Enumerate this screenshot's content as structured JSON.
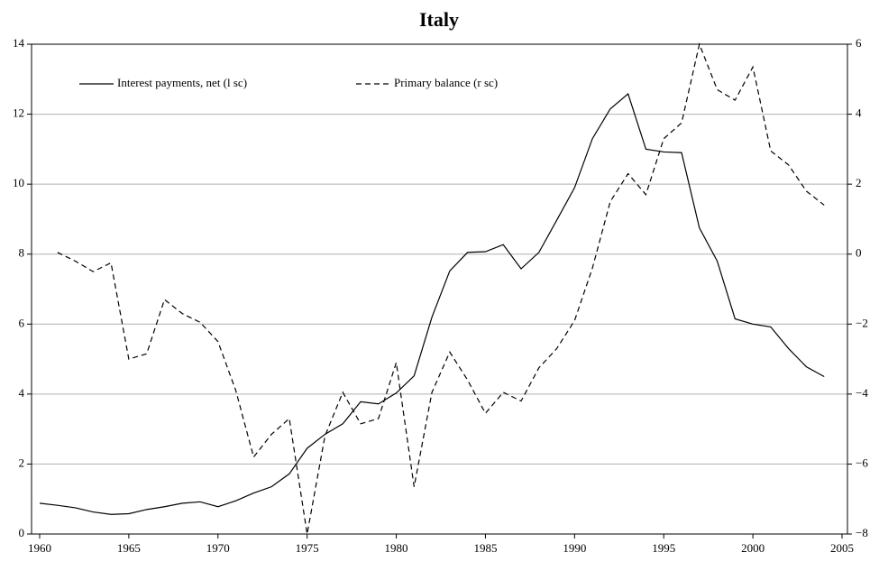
{
  "chart_data": {
    "type": "line",
    "title": "Italy",
    "x": [
      1960,
      1961,
      1962,
      1963,
      1964,
      1965,
      1966,
      1967,
      1968,
      1969,
      1970,
      1971,
      1972,
      1973,
      1974,
      1975,
      1976,
      1977,
      1978,
      1979,
      1980,
      1981,
      1982,
      1983,
      1984,
      1985,
      1986,
      1987,
      1988,
      1989,
      1990,
      1991,
      1992,
      1993,
      1994,
      1995,
      1996,
      1997,
      1998,
      1999,
      2000,
      2001,
      2002,
      2003,
      2004
    ],
    "xlim": [
      1960,
      2005
    ],
    "xticks": [
      1960,
      1965,
      1970,
      1975,
      1980,
      1985,
      1990,
      1995,
      2000,
      2005
    ],
    "ylim": [
      0,
      14
    ],
    "yticks": [
      0,
      2,
      4,
      6,
      8,
      10,
      12,
      14
    ],
    "y2lim": [
      -8,
      6
    ],
    "y2ticks": [
      {
        "value": -8,
        "label": "−8"
      },
      {
        "value": -6,
        "label": "−6"
      },
      {
        "value": -4,
        "label": "−4"
      },
      {
        "value": -2,
        "label": "−2"
      },
      0,
      2,
      4,
      6
    ],
    "grid": true,
    "series": [
      {
        "name": "Interest payments, net (l sc)",
        "color": "#000000",
        "dash": "solid",
        "values": [
          0.88,
          0.82,
          0.75,
          0.63,
          0.56,
          0.58,
          0.7,
          0.78,
          0.88,
          0.92,
          0.78,
          0.95,
          1.17,
          1.35,
          1.72,
          2.45,
          2.85,
          3.15,
          3.78,
          3.72,
          4.03,
          4.52,
          6.2,
          7.52,
          8.05,
          8.07,
          8.27,
          7.58,
          8.05,
          8.97,
          9.9,
          11.3,
          12.15,
          12.58,
          11.0,
          10.92,
          10.9,
          8.75,
          7.8,
          6.15,
          6.0,
          5.92,
          5.3,
          4.78,
          4.5
        ]
      },
      {
        "name": "Primary balance (r sc)",
        "color": "#000000",
        "dash": "dashed",
        "axis": "y2",
        "values": [
          null,
          0.05,
          -0.2,
          -0.5,
          -0.25,
          -3.0,
          -2.85,
          -1.3,
          -1.7,
          -1.95,
          -2.5,
          -3.9,
          -5.8,
          -5.15,
          -4.7,
          -8.0,
          -5.2,
          -3.95,
          -4.85,
          -4.7,
          -3.1,
          -6.65,
          -3.95,
          -2.8,
          -3.6,
          -4.55,
          -3.95,
          -4.2,
          -3.25,
          -2.7,
          -1.9,
          -0.4,
          1.5,
          2.3,
          1.7,
          3.3,
          3.75,
          6.0,
          4.7,
          4.4,
          5.35,
          2.95,
          2.55,
          1.8,
          1.4
        ]
      }
    ]
  }
}
